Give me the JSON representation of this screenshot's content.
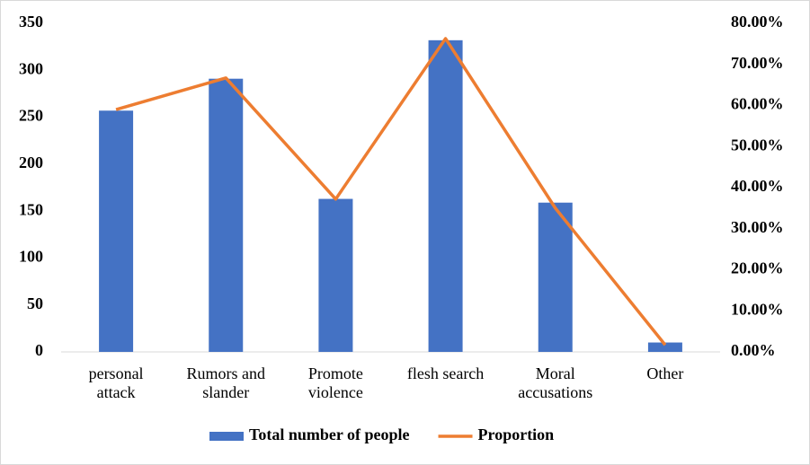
{
  "chart_data": {
    "type": "bar-line",
    "categories": [
      "personal attack",
      "Rumors and slander",
      "Promote violence",
      "flesh search",
      "Moral accusations",
      "Other"
    ],
    "series": [
      {
        "name": "Total number of people",
        "type": "bar",
        "color": "#4472c4",
        "values": [
          257,
          291,
          163,
          332,
          159,
          10
        ]
      },
      {
        "name": "Proportion",
        "type": "line",
        "axis": "y2",
        "color": "#ed7d31",
        "values": [
          59.0,
          66.7,
          37.2,
          76.3,
          35.0,
          1.7
        ]
      }
    ],
    "ylim": [
      0,
      350
    ],
    "yticks": [
      0,
      50,
      100,
      150,
      200,
      250,
      300,
      350
    ],
    "y2lim": [
      0,
      80
    ],
    "y2ticks": [
      {
        "value": 0,
        "label": "0.00%"
      },
      {
        "value": 10,
        "label": "10.00%"
      },
      {
        "value": 20,
        "label": "20.00%"
      },
      {
        "value": 30,
        "label": "30.00%"
      },
      {
        "value": 40,
        "label": "40.00%"
      },
      {
        "value": 50,
        "label": "50.00%"
      },
      {
        "value": 60,
        "label": "60.00%"
      },
      {
        "value": 70,
        "label": "70.00%"
      },
      {
        "value": 80,
        "label": "80.00%"
      }
    ],
    "legend": "bottom",
    "grid": false
  }
}
